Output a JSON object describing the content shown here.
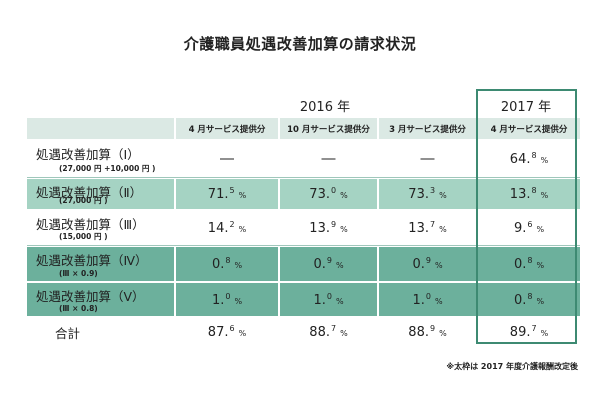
{
  "title": "介護職員処遇改善加算の請求状況",
  "footnote": "※太枠は 2017 年度介護報酬改定後",
  "years": [
    "2016 年",
    "2017 年"
  ],
  "columns": [
    "4 月サービス提供分",
    "10 月サービス提供分",
    "3 月サービス提供分",
    "4 月サービス提供分"
  ],
  "chart_data": {
    "type": "table",
    "title": "介護職員処遇改善加算の請求状況",
    "column_groups": [
      {
        "year": "2016 年",
        "columns": [
          "4 月サービス提供分",
          "10 月サービス提供分",
          "3 月サービス提供分"
        ]
      },
      {
        "year": "2017 年",
        "columns": [
          "4 月サービス提供分"
        ]
      }
    ],
    "unit": "%",
    "rows": [
      {
        "label": "処遇改善加算（Ⅰ）",
        "sub": "(27,000 円 +10,000 円 )",
        "values": [
          null,
          null,
          null,
          64.8
        ]
      },
      {
        "label": "処遇改善加算（Ⅱ）",
        "sub": "(27,000 円 )",
        "values": [
          71.5,
          73.0,
          73.3,
          13.8
        ]
      },
      {
        "label": "処遇改善加算（Ⅲ）",
        "sub": "(15,000 円 )",
        "values": [
          14.2,
          13.9,
          13.7,
          9.6
        ]
      },
      {
        "label": "処遇改善加算（Ⅳ）",
        "sub": "(Ⅲ × 0.9)",
        "values": [
          0.8,
          0.9,
          0.9,
          0.8
        ]
      },
      {
        "label": "処遇改善加算（Ⅴ）",
        "sub": "(Ⅲ × 0.8)",
        "values": [
          1.0,
          1.0,
          1.0,
          0.8
        ]
      },
      {
        "label": "合計",
        "sub": "",
        "values": [
          87.6,
          88.7,
          88.9,
          89.7
        ]
      }
    ],
    "empty_symbol": "―",
    "highlight_column": 3
  },
  "colors": {
    "header_band": "#dbe9e4",
    "light_band": "#a5d3c3",
    "dark_band": "#6cb09c",
    "frame": "#3d8a72",
    "row_line": "#9fc7bb"
  }
}
